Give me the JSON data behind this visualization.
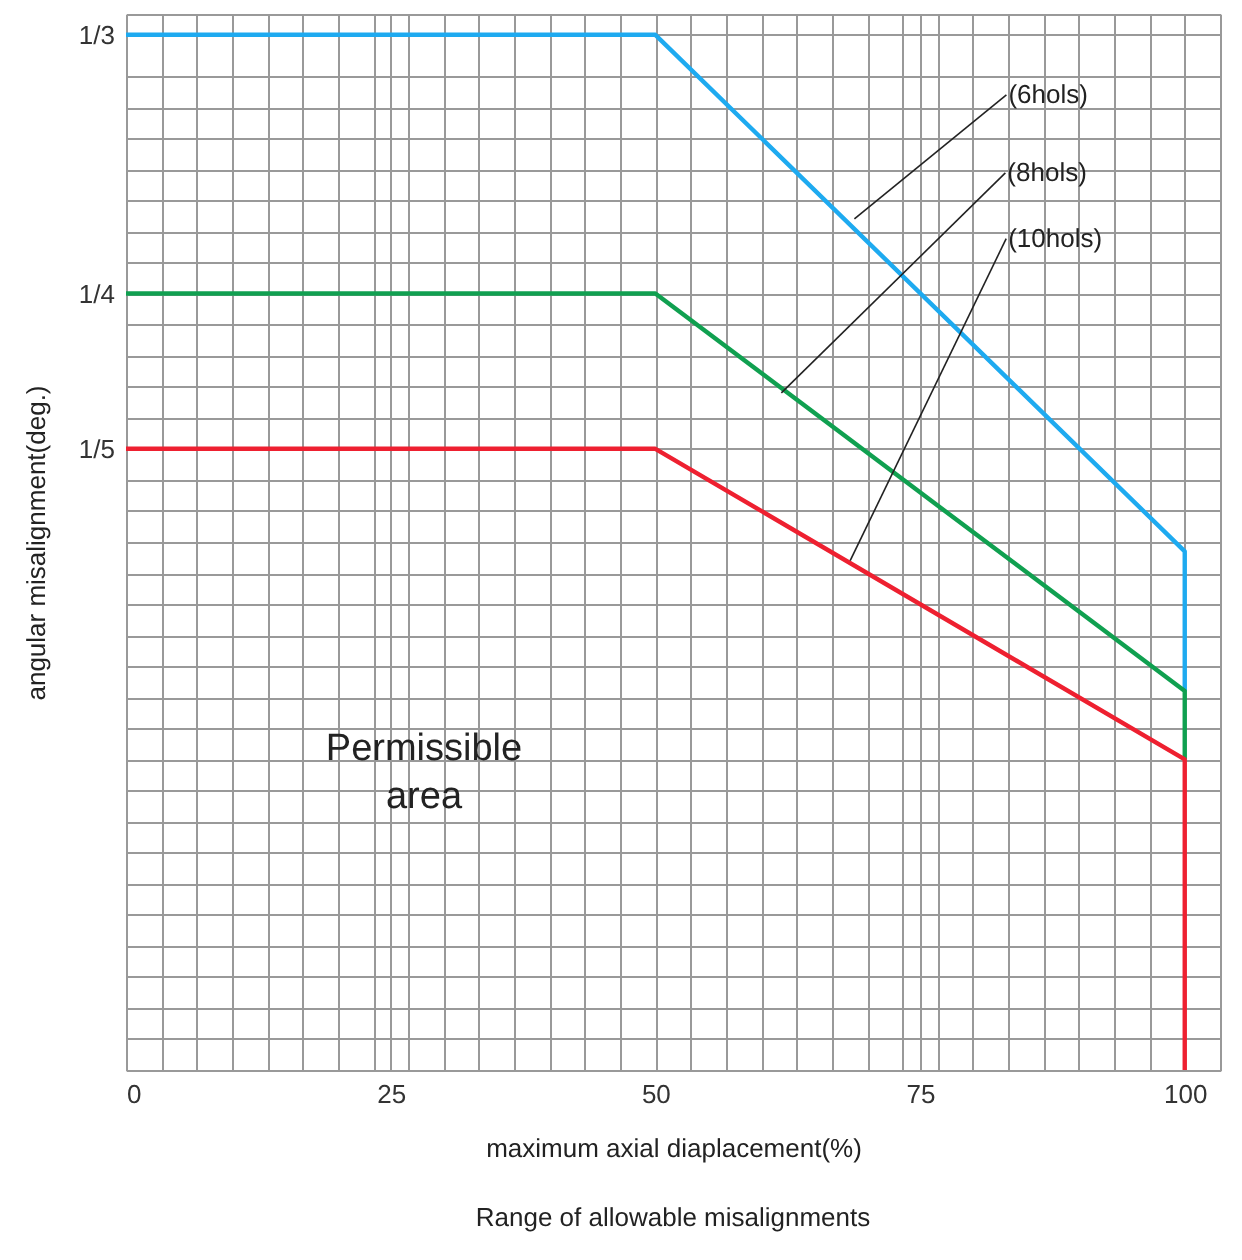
{
  "chart_data": {
    "type": "line",
    "title": "Range of allowable misalignments",
    "xlabel": "maximum axial diaplacement(%)",
    "ylabel": "angular misalignment(deg.)",
    "series": [
      {
        "color": "#1eaaf0",
        "x": [
          0,
          50,
          100,
          100
        ],
        "values": [
          0.3333,
          0.3333,
          0.167,
          0.122
        ]
      },
      {
        "color": "#10a050",
        "x": [
          0,
          50,
          100,
          100
        ],
        "values": [
          0.25,
          0.25,
          0.122,
          0.1
        ]
      },
      {
        "color": "#ee2030",
        "x": [
          0,
          50,
          100,
          100
        ],
        "values": [
          0.2,
          0.2,
          0.1,
          0
        ]
      }
    ],
    "annotations": [
      {
        "text": "(6hols)",
        "x": 68.8,
        "y": 0.274
      },
      {
        "text": "(8hols)",
        "x": 61.9,
        "y": 0.218
      },
      {
        "text": "(10hols)",
        "x": 68.4,
        "y": 0.164
      },
      "Permissible\narea"
    ],
    "xlim": [
      0,
      103.33
    ],
    "ylim": [
      0,
      0.34
    ],
    "xticks": [
      0,
      {
        "value": 3.33,
        "label": null
      },
      {
        "value": 6.67,
        "label": null
      },
      {
        "value": 10,
        "label": null
      },
      {
        "value": 13.33,
        "label": null
      },
      {
        "value": 16.67,
        "label": null
      },
      {
        "value": 20,
        "label": null
      },
      {
        "value": 23.33,
        "label": null
      },
      25,
      {
        "value": 26.67,
        "label": null
      },
      {
        "value": 30,
        "label": null
      },
      {
        "value": 33.33,
        "label": null
      },
      {
        "value": 36.67,
        "label": null
      },
      {
        "value": 40,
        "label": null
      },
      {
        "value": 43.33,
        "label": null
      },
      {
        "value": 46.67,
        "label": null
      },
      50,
      {
        "value": 53.33,
        "label": null
      },
      {
        "value": 56.67,
        "label": null
      },
      {
        "value": 60,
        "label": null
      },
      {
        "value": 63.33,
        "label": null
      },
      {
        "value": 66.67,
        "label": null
      },
      {
        "value": 70,
        "label": null
      },
      {
        "value": 73.33,
        "label": null
      },
      75,
      {
        "value": 76.67,
        "label": null
      },
      {
        "value": 80,
        "label": null
      },
      {
        "value": 83.33,
        "label": null
      },
      {
        "value": 86.67,
        "label": null
      },
      {
        "value": 90,
        "label": null
      },
      {
        "value": 93.33,
        "label": null
      },
      {
        "value": 96.67,
        "label": null
      },
      100,
      {
        "value": 103.33,
        "label": null
      }
    ],
    "yticks": [
      {
        "value": 0,
        "label": null
      },
      {
        "value": 0.01,
        "label": null
      },
      {
        "value": 0.02,
        "label": null
      },
      {
        "value": 0.03,
        "label": null
      },
      {
        "value": 0.04,
        "label": null
      },
      {
        "value": 0.05,
        "label": null
      },
      {
        "value": 0.06,
        "label": null
      },
      {
        "value": 0.07,
        "label": null
      },
      {
        "value": 0.08,
        "label": null
      },
      {
        "value": 0.09,
        "label": null
      },
      {
        "value": 0.1,
        "label": null
      },
      {
        "value": 0.11,
        "label": null
      },
      {
        "value": 0.12,
        "label": null
      },
      {
        "value": 0.13,
        "label": null
      },
      {
        "value": 0.14,
        "label": null
      },
      {
        "value": 0.15,
        "label": null
      },
      {
        "value": 0.16,
        "label": null
      },
      {
        "value": 0.17,
        "label": null
      },
      {
        "value": 0.18,
        "label": null
      },
      {
        "value": 0.19,
        "label": null
      },
      {
        "value": 0.2,
        "label": "1/5"
      },
      {
        "value": 0.21,
        "label": null
      },
      {
        "value": 0.22,
        "label": null
      },
      {
        "value": 0.23,
        "label": null
      },
      {
        "value": 0.24,
        "label": null
      },
      {
        "value": 0.25,
        "label": "1/4"
      },
      {
        "value": 0.26,
        "label": null
      },
      {
        "value": 0.27,
        "label": null
      },
      {
        "value": 0.28,
        "label": null
      },
      {
        "value": 0.29,
        "label": null
      },
      {
        "value": 0.3,
        "label": null
      },
      {
        "value": 0.31,
        "label": null
      },
      {
        "value": 0.32,
        "label": null
      },
      {
        "value": 0.3333,
        "label": "1/3"
      },
      {
        "value": 0.34,
        "label": null
      }
    ],
    "grid": true,
    "marker": "none",
    "line_style": "solid"
  }
}
